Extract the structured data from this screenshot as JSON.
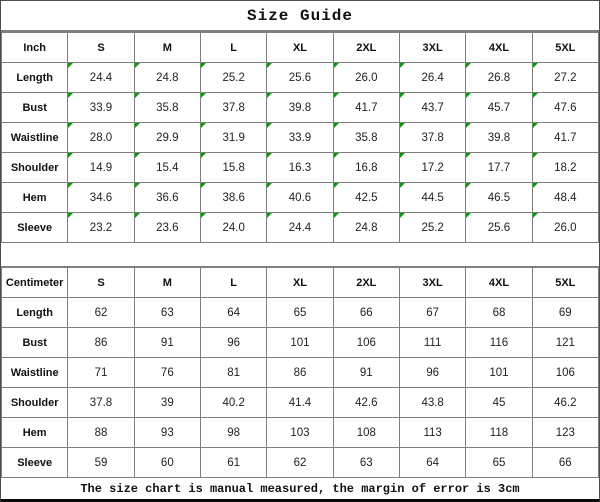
{
  "title": "Size Guide",
  "footer_note": "The size chart is manual measured, the margin of error is 3cm",
  "colors": {
    "indicator_green": "#00A000",
    "grid_line": "#7f7f7f",
    "outer_border": "#0a0a0a",
    "text": "#111111",
    "background": "#ffffff"
  },
  "tables": [
    {
      "unit_label": "Inch",
      "sizes": [
        "S",
        "M",
        "L",
        "XL",
        "2XL",
        "3XL",
        "4XL",
        "5XL"
      ],
      "has_indicators": true,
      "rows": [
        {
          "label": "Length",
          "values": [
            "24.4",
            "24.8",
            "25.2",
            "25.6",
            "26.0",
            "26.4",
            "26.8",
            "27.2"
          ]
        },
        {
          "label": "Bust",
          "values": [
            "33.9",
            "35.8",
            "37.8",
            "39.8",
            "41.7",
            "43.7",
            "45.7",
            "47.6"
          ]
        },
        {
          "label": "Waistline",
          "values": [
            "28.0",
            "29.9",
            "31.9",
            "33.9",
            "35.8",
            "37.8",
            "39.8",
            "41.7"
          ]
        },
        {
          "label": "Shoulder",
          "values": [
            "14.9",
            "15.4",
            "15.8",
            "16.3",
            "16.8",
            "17.2",
            "17.7",
            "18.2"
          ]
        },
        {
          "label": "Hem",
          "values": [
            "34.6",
            "36.6",
            "38.6",
            "40.6",
            "42.5",
            "44.5",
            "46.5",
            "48.4"
          ]
        },
        {
          "label": "Sleeve",
          "values": [
            "23.2",
            "23.6",
            "24.0",
            "24.4",
            "24.8",
            "25.2",
            "25.6",
            "26.0"
          ]
        }
      ]
    },
    {
      "unit_label": "Centimeter",
      "sizes": [
        "S",
        "M",
        "L",
        "XL",
        "2XL",
        "3XL",
        "4XL",
        "5XL"
      ],
      "has_indicators": false,
      "rows": [
        {
          "label": "Length",
          "values": [
            "62",
            "63",
            "64",
            "65",
            "66",
            "67",
            "68",
            "69"
          ]
        },
        {
          "label": "Bust",
          "values": [
            "86",
            "91",
            "96",
            "101",
            "106",
            "111",
            "116",
            "121"
          ]
        },
        {
          "label": "Waistline",
          "values": [
            "71",
            "76",
            "81",
            "86",
            "91",
            "96",
            "101",
            "106"
          ]
        },
        {
          "label": "Shoulder",
          "values": [
            "37.8",
            "39",
            "40.2",
            "41.4",
            "42.6",
            "43.8",
            "45",
            "46.2"
          ]
        },
        {
          "label": "Hem",
          "values": [
            "88",
            "93",
            "98",
            "103",
            "108",
            "113",
            "118",
            "123"
          ]
        },
        {
          "label": "Sleeve",
          "values": [
            "59",
            "60",
            "61",
            "62",
            "63",
            "64",
            "65",
            "66"
          ]
        }
      ]
    }
  ]
}
